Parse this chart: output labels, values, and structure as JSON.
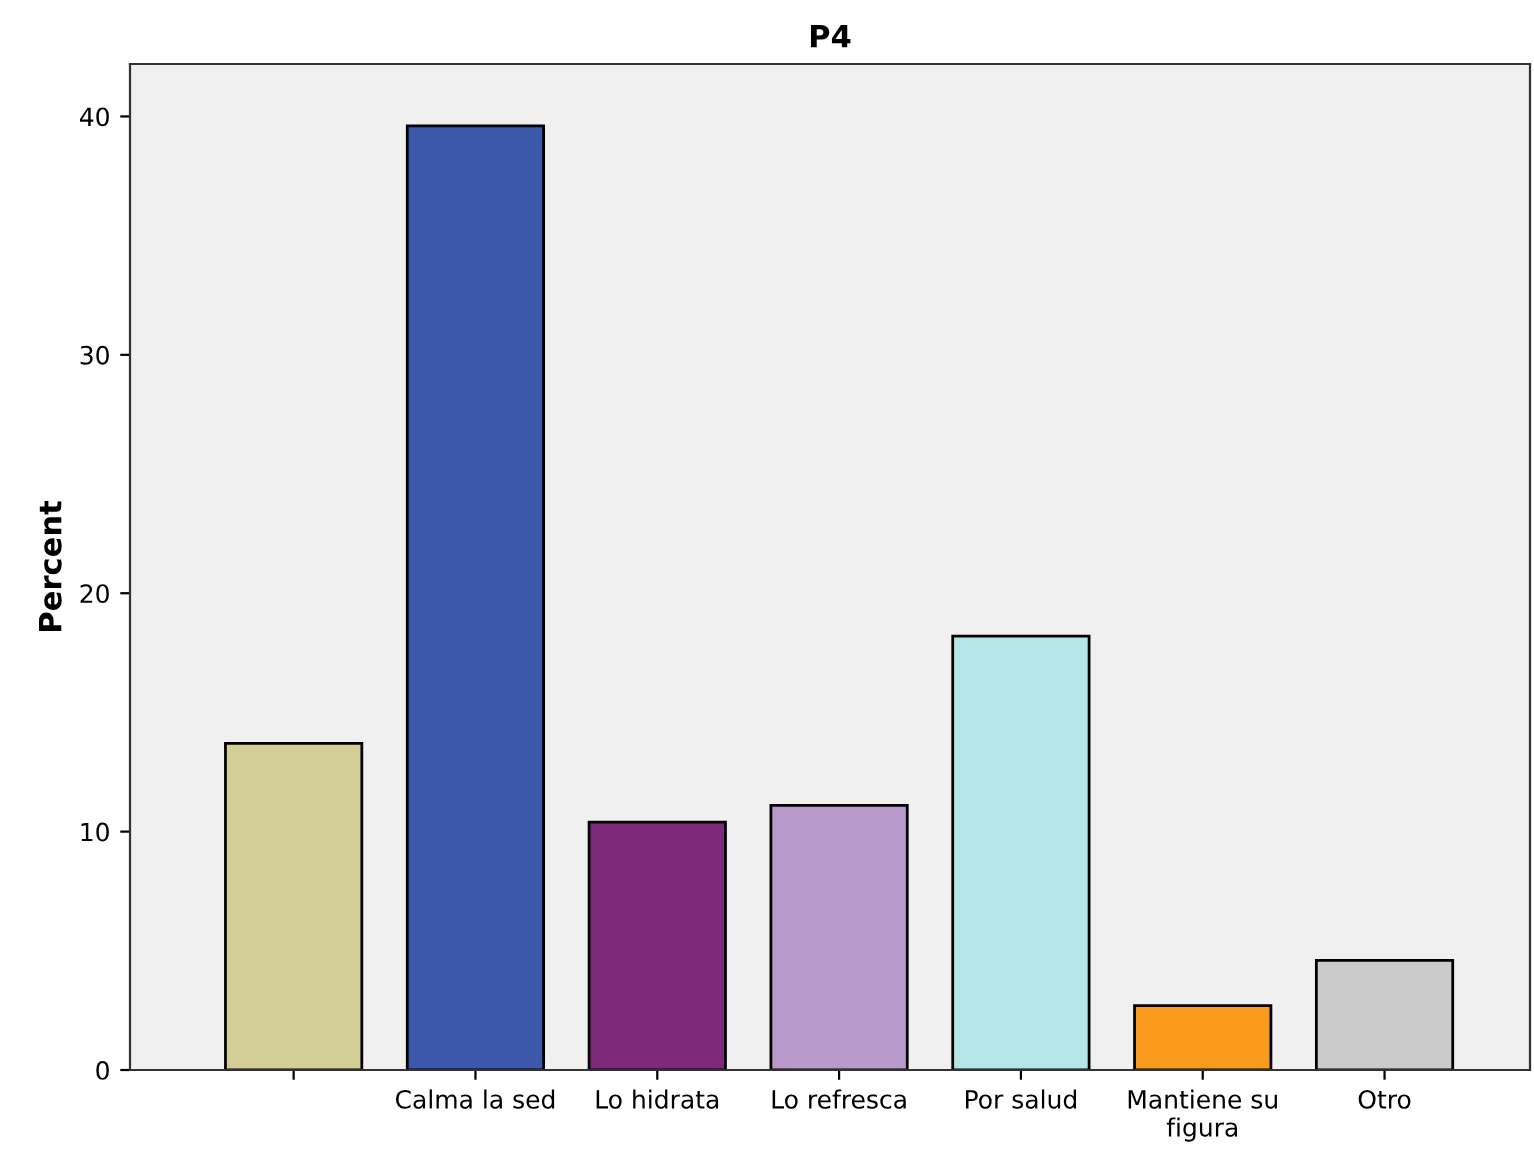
{
  "chart_data": {
    "type": "bar",
    "title": "P4",
    "ylabel": "Percent",
    "categories": [
      null,
      "Calma la sed",
      "Lo hidrata",
      "Lo refresca",
      "Por salud",
      "Mantiene su\nfigura",
      "Otro"
    ],
    "values": [
      13.7,
      39.6,
      10.4,
      11.1,
      18.2,
      2.7,
      4.6
    ],
    "colors": [
      "#d3ce97",
      "#3c58aa",
      "#7d2a7a",
      "#b89bca",
      "#b5e6e6",
      "#f79a1e",
      "#cacaca"
    ],
    "ylim": [
      0,
      42.2
    ],
    "yticks": [
      0,
      10,
      20,
      30,
      40
    ],
    "grid": false
  }
}
